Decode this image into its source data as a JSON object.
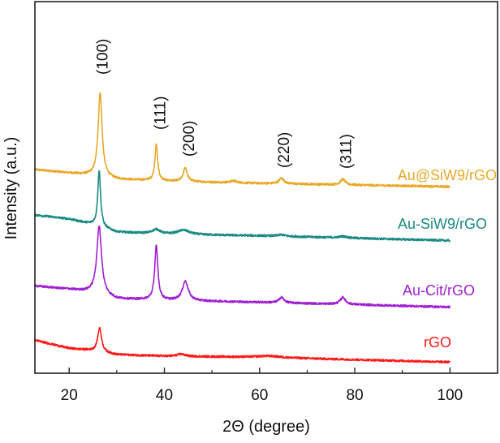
{
  "chart_data": {
    "type": "line",
    "title": "",
    "xlabel": "2Θ (degree)",
    "ylabel": "Intensity (a.u.)",
    "xlim": [
      12.8,
      110
    ],
    "ylim": [
      0,
      100
    ],
    "xticks": [
      20,
      40,
      60,
      80,
      100
    ],
    "xtick_labels": [
      "20",
      "40",
      "60",
      "80",
      "100"
    ],
    "minor_xticks": [
      30,
      50,
      70,
      90,
      110
    ],
    "grid": false,
    "legend": "inline labels at right end of each trace",
    "peak_labels": [
      {
        "text": "(100)",
        "x": 26.9
      },
      {
        "text": "(111)",
        "x": 39.0
      },
      {
        "text": "(200)",
        "x": 45.0
      },
      {
        "text": "(220)",
        "x": 65.0
      },
      {
        "text": "(311)",
        "x": 78.0
      }
    ],
    "series": [
      {
        "name": "Au@SiW9/rGO",
        "color": "#E8A92A",
        "x_range": [
          12.8,
          100
        ],
        "baseline": [
          [
            12.8,
            54.8
          ],
          [
            20,
            53.9
          ],
          [
            25,
            53.2
          ],
          [
            30,
            52.2
          ],
          [
            40,
            51.7
          ],
          [
            60,
            51.1
          ],
          [
            100,
            50.2
          ]
        ],
        "peaks": [
          [
            26.5,
            22.6,
            1.0
          ],
          [
            38.3,
            9.8,
            0.7
          ],
          [
            44.4,
            3.7,
            1.0
          ],
          [
            54.5,
            0.5,
            1.5
          ],
          [
            64.6,
            1.5,
            1.2
          ],
          [
            77.5,
            1.5,
            1.2
          ]
        ]
      },
      {
        "name": "Au-SiW9/rGO",
        "color": "#1A8A82",
        "x_range": [
          12.8,
          100
        ],
        "baseline": [
          [
            12.8,
            42.6
          ],
          [
            20,
            41.5
          ],
          [
            25,
            40.0
          ],
          [
            30,
            38.0
          ],
          [
            40,
            37.4
          ],
          [
            60,
            37.0
          ],
          [
            100,
            35.7
          ]
        ],
        "peaks": [
          [
            26.3,
            15.2,
            0.7
          ],
          [
            38.3,
            1.2,
            2.0
          ],
          [
            44.0,
            1.2,
            3.0
          ],
          [
            64.6,
            0.4,
            2.0
          ],
          [
            77.5,
            0.4,
            2.0
          ]
        ]
      },
      {
        "name": "Au-Cit/rGO",
        "color": "#A020D0",
        "x_range": [
          12.8,
          100
        ],
        "baseline": [
          [
            12.8,
            23.5
          ],
          [
            20,
            22.6
          ],
          [
            25,
            21.7
          ],
          [
            30,
            20.0
          ],
          [
            40,
            19.6
          ],
          [
            60,
            19.1
          ],
          [
            100,
            17.8
          ]
        ],
        "peaks": [
          [
            26.3,
            18.3,
            1.2
          ],
          [
            38.3,
            14.6,
            0.8
          ],
          [
            44.4,
            5.2,
            1.5
          ],
          [
            64.6,
            1.5,
            1.2
          ],
          [
            77.5,
            1.9,
            1.3
          ]
        ]
      },
      {
        "name": "rGO",
        "color": "#FF1A1A",
        "x_range": [
          12.8,
          100
        ],
        "baseline": [
          [
            12.8,
            8.9
          ],
          [
            20,
            6.7
          ],
          [
            24,
            6.2
          ],
          [
            30,
            5.0
          ],
          [
            40,
            4.6
          ],
          [
            60,
            4.3
          ],
          [
            100,
            3.0
          ]
        ],
        "peaks": [
          [
            26.4,
            6.5,
            1.0
          ],
          [
            43.5,
            0.6,
            2.0
          ],
          [
            62,
            0.4,
            6.0
          ]
        ]
      }
    ]
  }
}
